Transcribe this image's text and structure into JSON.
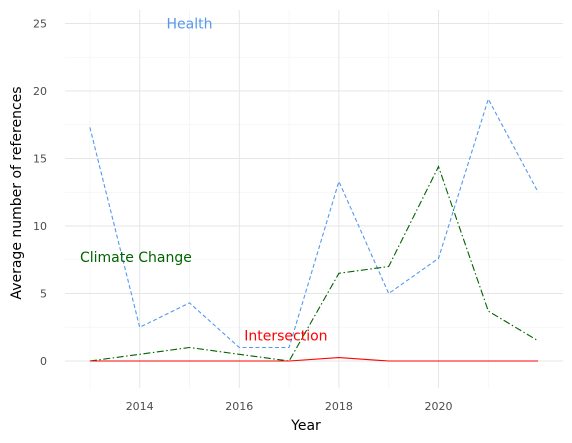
{
  "chart_data": {
    "type": "line",
    "title": "",
    "xlabel": "Year",
    "ylabel": "Average number of references",
    "x": [
      2013,
      2014,
      2015,
      2016,
      2017,
      2018,
      2019,
      2020,
      2021,
      2022
    ],
    "xlim": [
      2012.5,
      2022.5
    ],
    "ylim": [
      -2,
      26
    ],
    "x_ticks": [
      2014,
      2016,
      2018,
      2020
    ],
    "y_ticks": [
      0,
      5,
      10,
      15,
      20,
      25
    ],
    "grid": true,
    "legend": "none",
    "series": [
      {
        "name": "Health",
        "color": "#5599ee",
        "dash": "dashed",
        "values": [
          17.3,
          2.5,
          4.3,
          1.0,
          1.0,
          13.3,
          5.0,
          7.6,
          19.4,
          12.5
        ]
      },
      {
        "name": "Climate Change",
        "color": "#006400",
        "dash": "dashdot",
        "values": [
          0,
          0.5,
          1.0,
          0.5,
          0,
          6.5,
          7.0,
          14.4,
          3.7,
          1.5
        ]
      },
      {
        "name": "Intersection",
        "color": "#ff0000",
        "dash": "solid",
        "values": [
          0,
          0,
          0,
          0,
          0,
          0.25,
          0,
          0,
          0,
          0
        ]
      }
    ]
  }
}
